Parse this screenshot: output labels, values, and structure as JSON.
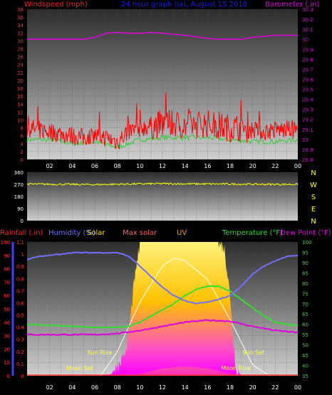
{
  "colors": {
    "wind": "#ff0000",
    "gust_line": "#33cc33",
    "barometer": "#e000e0",
    "title": "#1a1aff",
    "wind_dir": "#ffff00",
    "rain": "#4040ff",
    "humidity": "#7070ff",
    "solar": "#ffe000",
    "max_solar": "#ff6060",
    "uv": "#ffa000",
    "temperature": "#33dd33",
    "dew_point": "#e000e0"
  },
  "chart_data": [
    {
      "type": "line",
      "title": "24 hour graph (ia), August 15 2018",
      "left_label": "Windspeed (mph)",
      "right_label": "Barometer (.in)",
      "x_ticks": [
        "02",
        "04",
        "06",
        "08",
        "10",
        "12",
        "14",
        "16",
        "18",
        "20",
        "22",
        "00"
      ],
      "y_left_ticks": [
        "0",
        "2",
        "4",
        "6",
        "8",
        "10",
        "12",
        "14",
        "16",
        "18",
        "20",
        "22",
        "24",
        "26",
        "28",
        "30",
        "32",
        "34",
        "36",
        "38"
      ],
      "y_left_range": [
        0,
        38
      ],
      "y_right_ticks": [
        "28.8",
        "28.9",
        "29",
        "29.1",
        "29.2",
        "29.3",
        "29.4",
        "29.5",
        "29.6",
        "29.7",
        "29.8",
        "29.9",
        "30",
        "30.1",
        "30.2",
        "30.3"
      ],
      "y_right_range": [
        28.8,
        30.3
      ],
      "series": [
        {
          "name": "Windspeed (mph)",
          "hours": [
            0,
            1,
            2,
            3,
            4,
            5,
            6,
            7,
            8,
            9,
            10,
            11,
            12,
            13,
            14,
            15,
            16,
            17,
            18,
            19,
            20,
            21,
            22,
            23,
            24
          ],
          "values": [
            8,
            7.5,
            7,
            6.5,
            6,
            5.5,
            6,
            5.5,
            4.5,
            7,
            8,
            8.5,
            9,
            9,
            8.5,
            9,
            9,
            8.5,
            8,
            8,
            7.5,
            7,
            7.5,
            7.5,
            7.5
          ]
        },
        {
          "name": "Wind gust low",
          "hours": [
            0,
            2,
            4,
            6,
            8,
            10,
            12,
            14,
            16,
            18,
            20,
            22,
            24
          ],
          "values": [
            5,
            5,
            4,
            4.5,
            3,
            5,
            5.5,
            5.5,
            5.5,
            5,
            4.5,
            4.5,
            5
          ]
        },
        {
          "name": "Barometer (.in)",
          "hours": [
            0,
            2,
            4,
            5,
            6,
            7,
            8,
            9,
            10,
            11,
            12,
            14,
            16,
            17,
            18,
            19,
            20,
            22,
            24
          ],
          "values": [
            30.0,
            30.0,
            30.0,
            30.0,
            30.02,
            30.06,
            30.07,
            30.06,
            30.06,
            30.07,
            30.06,
            30.04,
            30.01,
            30.0,
            30.0,
            30.0,
            30.02,
            30.04,
            30.04
          ]
        }
      ]
    },
    {
      "type": "line",
      "left_ticks": [
        "0",
        "90",
        "180",
        "270",
        "360"
      ],
      "y_range": [
        0,
        360
      ],
      "compass": [
        "N",
        "W",
        "S",
        "E",
        "N"
      ],
      "series": [
        {
          "name": "Wind direction",
          "hours": [
            0,
            3,
            6,
            9,
            12,
            15,
            18,
            21,
            24
          ],
          "values": [
            272,
            270,
            268,
            272,
            275,
            273,
            272,
            270,
            270
          ]
        }
      ]
    },
    {
      "type": "area",
      "legend": [
        "Rainfall (.in)",
        "Humidity (%)",
        "Solar",
        "Max solar",
        "UV",
        "Temperature (°F)",
        "Dew Point (°F)"
      ],
      "x_ticks": [
        "02",
        "04",
        "06",
        "08",
        "10",
        "12",
        "14",
        "16",
        "18",
        "20",
        "22",
        "00"
      ],
      "y_left_ticks": [
        "0",
        "10",
        "20",
        "30",
        "40",
        "50",
        "60",
        "70",
        "80",
        "90",
        "100"
      ],
      "y_left_range": [
        0,
        100
      ],
      "y_rain_ticks": [
        "0",
        "0.1",
        "0.2",
        "0.3",
        "0.4",
        "0.5",
        "0.6",
        "0.7",
        "0.8",
        "0.9",
        "1",
        "1.1"
      ],
      "y_rain_range": [
        0,
        1.1
      ],
      "y_right_ticks": [
        "35",
        "40",
        "45",
        "50",
        "55",
        "60",
        "65",
        "70",
        "75",
        "80",
        "85",
        "90",
        "95",
        "100"
      ],
      "y_right_range": [
        35,
        100
      ],
      "annotations": {
        "sun_rise": "Sun Rise",
        "sun_set": "Sun Set",
        "moon_set": "Moon Set",
        "moon_rise": "Moon Rise"
      },
      "series": [
        {
          "name": "Humidity (%)",
          "hours": [
            0,
            1,
            2,
            4,
            6,
            7,
            8,
            8.5,
            9,
            9.5,
            10,
            11,
            12,
            13,
            14,
            15,
            16,
            17,
            18,
            19,
            20,
            21,
            22,
            23,
            24
          ],
          "values": [
            87,
            89,
            90,
            92,
            92,
            92,
            92,
            91,
            89,
            86,
            82,
            74,
            66,
            60,
            56,
            54,
            55,
            57,
            60,
            67,
            76,
            82,
            86,
            89,
            90
          ]
        },
        {
          "name": "Temperature (°F)",
          "hours": [
            0,
            2,
            4,
            6,
            8,
            9,
            10,
            11,
            12,
            13,
            14,
            15,
            16,
            17,
            18,
            19,
            20,
            21,
            22,
            23,
            24
          ],
          "values": [
            60,
            59.5,
            59,
            58.5,
            58.5,
            59,
            61,
            64,
            67,
            70,
            74,
            77,
            78.5,
            78.5,
            76,
            72,
            68,
            64,
            61,
            60,
            59.5
          ]
        },
        {
          "name": "Dew Point (°F)",
          "hours": [
            0,
            2,
            4,
            6,
            8,
            10,
            12,
            14,
            16,
            18,
            20,
            22,
            24
          ],
          "values": [
            55,
            55,
            55,
            55,
            55.5,
            57,
            59,
            61,
            62,
            61.5,
            59,
            57,
            56
          ]
        },
        {
          "name": "Solar",
          "hours": [
            0,
            6,
            7,
            7.5,
            8,
            8.5,
            9,
            9.5,
            10,
            10.5,
            11,
            12,
            13,
            14,
            15,
            16,
            17,
            17.5,
            18,
            18.5,
            19,
            24
          ],
          "values": [
            0,
            0,
            0.3,
            1.5,
            5,
            12,
            30,
            70,
            100,
            100,
            100,
            100,
            100,
            100,
            100,
            100,
            100,
            95,
            60,
            5,
            0,
            0
          ]
        },
        {
          "name": "Max solar",
          "hours": [
            6.5,
            8,
            10,
            12,
            13,
            14,
            16,
            18,
            20,
            21.5
          ],
          "values": [
            0,
            18,
            55,
            82,
            88,
            86,
            72,
            42,
            8,
            0
          ]
        },
        {
          "name": "UV",
          "hours": [
            0,
            9,
            10,
            11,
            12,
            13,
            14,
            15,
            16,
            17,
            18,
            19,
            24
          ],
          "values": [
            0,
            0,
            1.5,
            4,
            6,
            7,
            7.5,
            7,
            6,
            4,
            1.5,
            0,
            0
          ]
        },
        {
          "name": "Rainfall (.in)",
          "hours": [
            0,
            24
          ],
          "values": [
            0,
            0
          ]
        }
      ]
    }
  ]
}
